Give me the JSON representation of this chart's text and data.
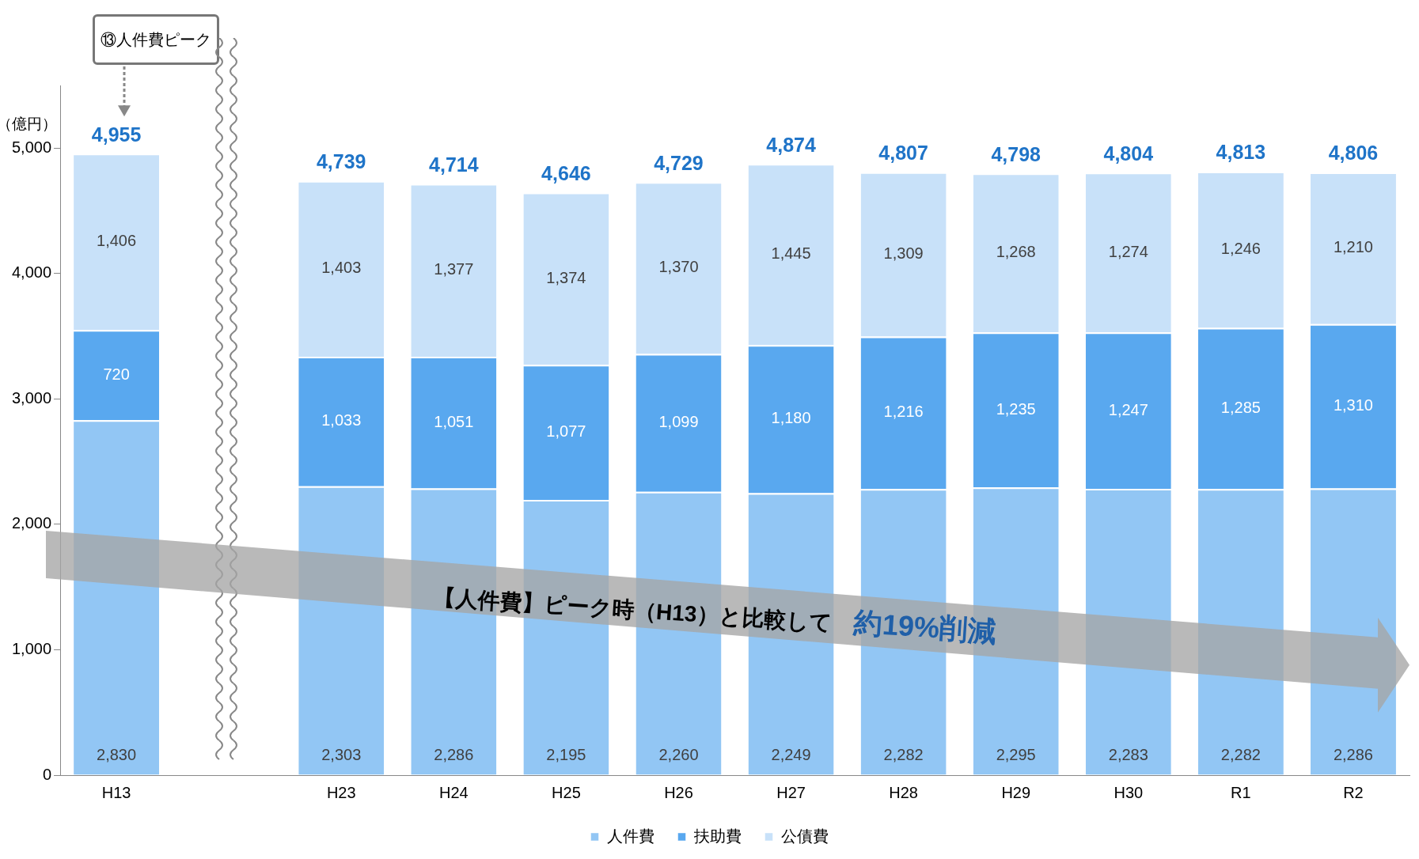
{
  "chart_data": {
    "type": "bar",
    "stacked": true,
    "ylabel": "（億円）",
    "categories": [
      "H13",
      null,
      "H23",
      "H24",
      "H25",
      "H26",
      "H27",
      "H28",
      "H29",
      "H30",
      "R1",
      "R2"
    ],
    "series": [
      {
        "name": "人件費",
        "color": "#92c6f4",
        "values": [
          2830,
          null,
          2303,
          2286,
          2195,
          2260,
          2249,
          2282,
          2295,
          2283,
          2282,
          2286
        ],
        "value_labels": [
          "2,830",
          null,
          "2,303",
          "2,286",
          "2,195",
          "2,260",
          "2,249",
          "2,282",
          "2,295",
          "2,283",
          "2,282",
          "2,286"
        ]
      },
      {
        "name": "扶助費",
        "color": "#59a8ef",
        "values": [
          720,
          null,
          1033,
          1051,
          1077,
          1099,
          1180,
          1216,
          1235,
          1247,
          1285,
          1310
        ],
        "value_labels": [
          "720",
          null,
          "1,033",
          "1,051",
          "1,077",
          "1,099",
          "1,180",
          "1,216",
          "1,235",
          "1,247",
          "1,285",
          "1,310"
        ]
      },
      {
        "name": "公債費",
        "color": "#c8e1f9",
        "values": [
          1406,
          null,
          1403,
          1377,
          1374,
          1370,
          1445,
          1309,
          1268,
          1274,
          1246,
          1210
        ],
        "value_labels": [
          "1,406",
          null,
          "1,403",
          "1,377",
          "1,374",
          "1,370",
          "1,445",
          "1,309",
          "1,268",
          "1,274",
          "1,246",
          "1,210"
        ]
      }
    ],
    "totals": [
      "4,955",
      null,
      "4,739",
      "4,714",
      "4,646",
      "4,729",
      "4,874",
      "4,807",
      "4,798",
      "4,804",
      "4,813",
      "4,806"
    ],
    "ylim": [
      0,
      5500
    ],
    "yticks": [
      0,
      {
        "value": 1000,
        "label": "1,000"
      },
      {
        "value": 2000,
        "label": "2,000"
      },
      {
        "value": 3000,
        "label": "3,000"
      },
      {
        "value": 4000,
        "label": "4,000"
      },
      {
        "value": 5000,
        "label": "5,000"
      }
    ],
    "grid": false,
    "legend": "bottom",
    "annotations": [
      "⑬人件費ピーク",
      "【人件費】ピーク時（H13）と比較して",
      "約19%削減"
    ]
  }
}
